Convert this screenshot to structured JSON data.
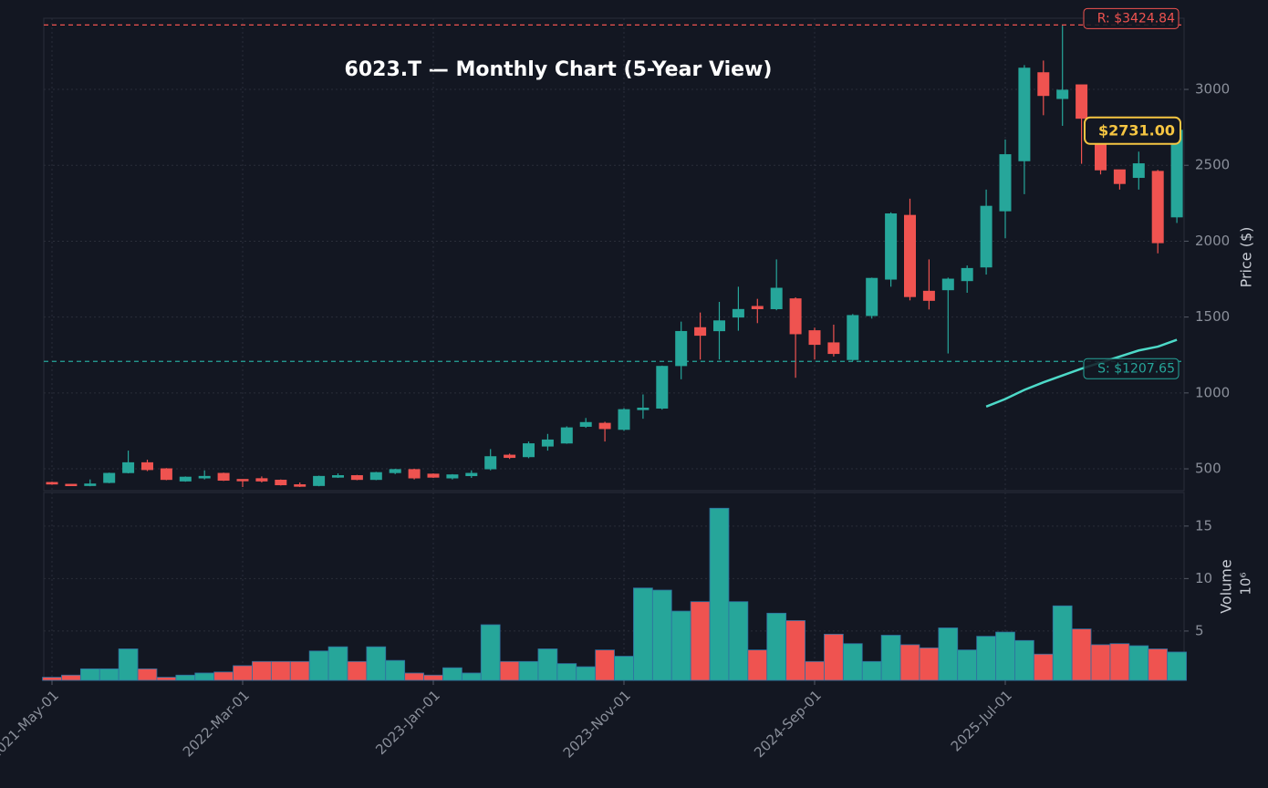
{
  "chart_data": {
    "type": "candlestick",
    "title": "6023.T — Monthly Chart (5-Year View)",
    "ylabel": "Price ($)",
    "categories": [
      "2021-May-01",
      null,
      null,
      null,
      null,
      null,
      null,
      null,
      null,
      null,
      "2022-Mar-01",
      null,
      null,
      null,
      null,
      null,
      null,
      null,
      null,
      null,
      "2023-Jan-01",
      null,
      null,
      null,
      null,
      null,
      null,
      null,
      null,
      null,
      "2023-Nov-01",
      null,
      null,
      null,
      null,
      null,
      null,
      null,
      null,
      null,
      "2024-Sep-01",
      null,
      null,
      null,
      null,
      null,
      null,
      null,
      null,
      null,
      "2025-Jul-01",
      null,
      null,
      null,
      null,
      null,
      null,
      null,
      null,
      null
    ],
    "open": [
      410,
      398,
      390,
      410,
      475,
      540,
      500,
      420,
      440,
      470,
      430,
      435,
      425,
      395,
      390,
      445,
      455,
      430,
      475,
      495,
      465,
      440,
      455,
      500,
      590,
      580,
      650,
      670,
      780,
      800,
      760,
      890,
      900,
      1180,
      1430,
      1410,
      1500,
      1570,
      1555,
      1620,
      1410,
      1330,
      1220,
      1510,
      1750,
      2170,
      1670,
      1680,
      1740,
      1830,
      2200,
      2530,
      3110,
      2940,
      3030,
      2800,
      2470,
      2420,
      2460,
      2160
    ],
    "high": [
      415,
      400,
      430,
      475,
      620,
      560,
      505,
      450,
      490,
      475,
      430,
      450,
      430,
      410,
      455,
      470,
      460,
      480,
      500,
      500,
      470,
      465,
      490,
      630,
      600,
      680,
      730,
      780,
      835,
      810,
      900,
      990,
      1180,
      1470,
      1530,
      1600,
      1700,
      1620,
      1880,
      1630,
      1430,
      1450,
      1520,
      1760,
      2190,
      2280,
      1880,
      1760,
      1840,
      2340,
      2670,
      3160,
      3190,
      3420,
      3030,
      2800,
      2470,
      2590,
      2470,
      2740
    ],
    "low": [
      395,
      388,
      385,
      405,
      470,
      485,
      425,
      415,
      430,
      420,
      380,
      410,
      390,
      380,
      385,
      440,
      425,
      425,
      465,
      430,
      440,
      430,
      440,
      490,
      565,
      570,
      620,
      665,
      770,
      680,
      750,
      830,
      890,
      1090,
      1220,
      1220,
      1410,
      1460,
      1545,
      1100,
      1220,
      1240,
      1210,
      1490,
      1700,
      1610,
      1550,
      1260,
      1660,
      1780,
      2020,
      2310,
      2830,
      2760,
      2510,
      2440,
      2340,
      2340,
      1920,
      2120
    ],
    "close": [
      400,
      392,
      400,
      470,
      540,
      495,
      430,
      445,
      450,
      425,
      425,
      420,
      395,
      385,
      450,
      455,
      430,
      475,
      495,
      440,
      445,
      460,
      470,
      580,
      575,
      665,
      690,
      770,
      805,
      765,
      890,
      900,
      1175,
      1405,
      1380,
      1475,
      1550,
      1555,
      1690,
      1390,
      1320,
      1260,
      1510,
      1755,
      2180,
      1635,
      1610,
      1750,
      1820,
      2230,
      2570,
      3140,
      2960,
      2995,
      2810,
      2470,
      2380,
      2510,
      1990,
      2731
    ],
    "colors": {
      "up": "#26a69a",
      "down": "#ef5350"
    },
    "ylim": [
      356,
      3469
    ],
    "yticks": [
      500,
      1000,
      1500,
      2000,
      2500,
      3000
    ],
    "grid": true,
    "overlay": {
      "color": "#4dd9c8",
      "values": [
        null,
        null,
        null,
        null,
        null,
        null,
        null,
        null,
        null,
        null,
        null,
        null,
        null,
        null,
        null,
        null,
        null,
        null,
        null,
        null,
        null,
        null,
        null,
        null,
        null,
        null,
        null,
        null,
        null,
        null,
        null,
        null,
        null,
        null,
        null,
        null,
        null,
        null,
        null,
        null,
        null,
        null,
        null,
        null,
        null,
        null,
        null,
        null,
        null,
        910,
        960,
        1020,
        1070,
        1115,
        1160,
        1200,
        1240,
        1280,
        1305,
        1350
      ]
    },
    "resistance": {
      "value": 3424.84,
      "label": "R: $3424.84",
      "color": "#ef5350"
    },
    "support": {
      "value": 1207.65,
      "label": "S: $1207.65",
      "color": "#26a69a"
    },
    "last_price": {
      "value": 2731,
      "label": "$2731.00",
      "color": "#f5c542"
    },
    "volume": {
      "ylabel": "Volume",
      "scale_label": "10⁶",
      "ylim": [
        0.3,
        18.2
      ],
      "yticks": [
        5,
        10,
        15
      ],
      "values": [
        0.6,
        0.8,
        1.4,
        1.4,
        3.3,
        1.4,
        0.6,
        0.8,
        1.0,
        1.1,
        1.7,
        2.1,
        2.1,
        2.1,
        3.1,
        3.5,
        2.1,
        3.5,
        2.2,
        1.0,
        0.8,
        1.5,
        1.0,
        5.6,
        2.1,
        2.1,
        3.3,
        1.9,
        1.6,
        3.2,
        2.6,
        9.1,
        8.9,
        6.9,
        7.8,
        16.7,
        7.8,
        3.2,
        6.7,
        6.0,
        2.1,
        4.7,
        3.8,
        2.1,
        4.6,
        3.7,
        3.4,
        5.3,
        3.2,
        4.5,
        4.9,
        4.1,
        2.8,
        7.4,
        5.2,
        3.7,
        3.8,
        3.6,
        3.3,
        3.0
      ]
    }
  }
}
